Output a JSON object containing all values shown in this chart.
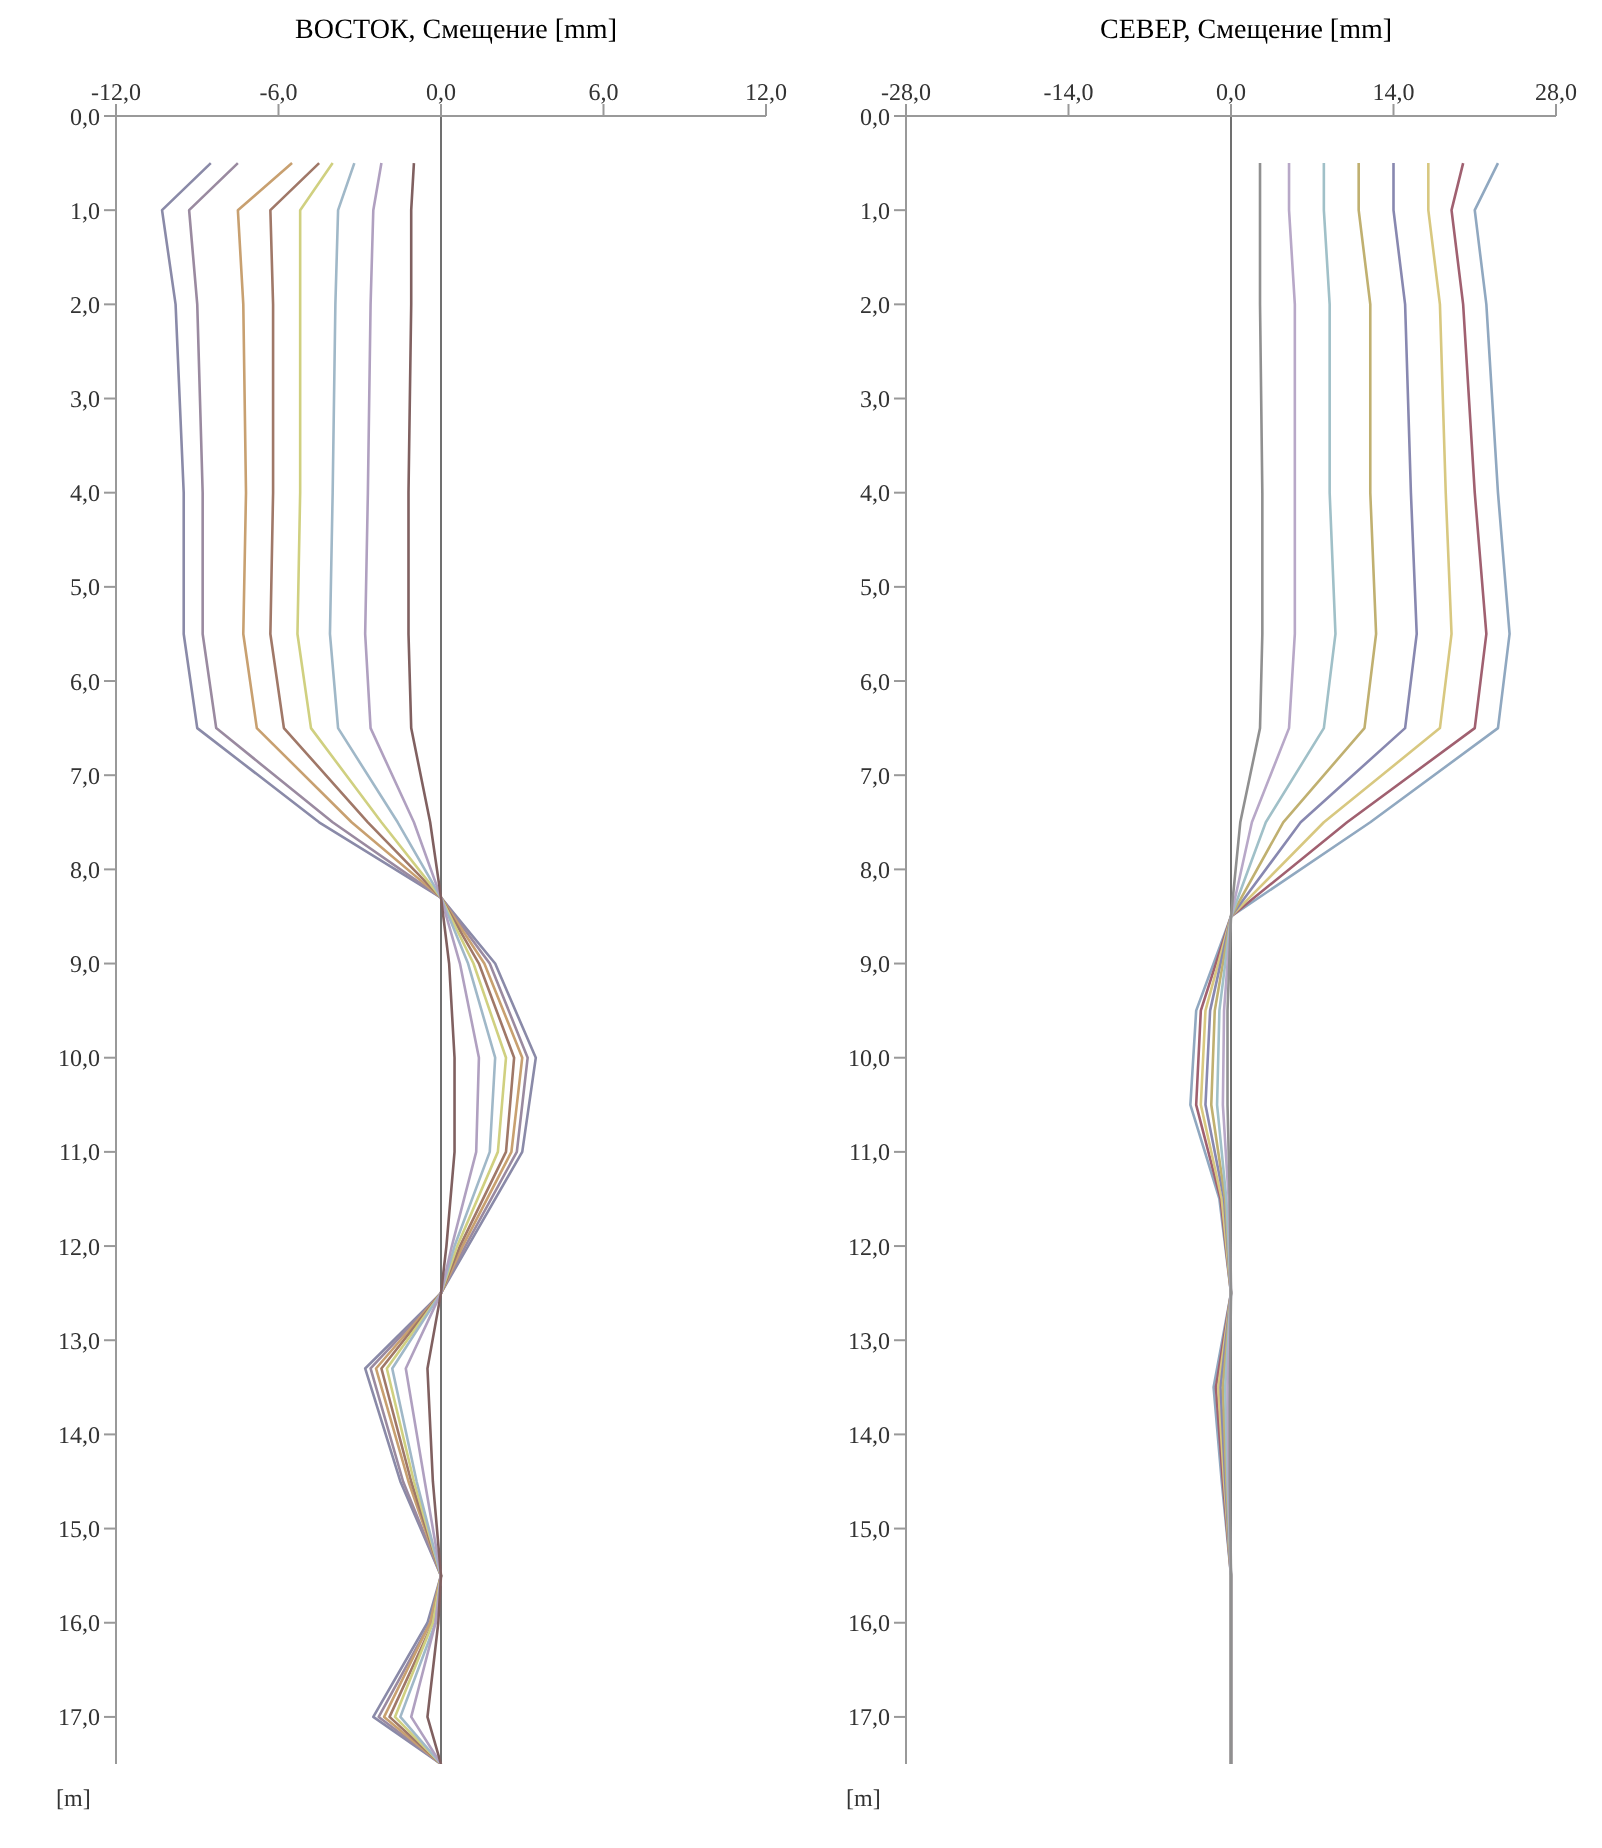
{
  "chart_data": [
    {
      "type": "line",
      "title": "ВОСТОК, Смещение [mm]",
      "ylabel": "[m]",
      "xlim": [
        -12,
        12
      ],
      "xticks": [
        {
          "value": -12,
          "label": "-12,0"
        },
        {
          "value": -6,
          "label": "-6,0"
        },
        {
          "value": 0,
          "label": "0,0"
        },
        {
          "value": 6,
          "label": "6,0"
        },
        {
          "value": 12,
          "label": "12,0"
        }
      ],
      "ylim": [
        17.5,
        0
      ],
      "yticks": [
        {
          "value": 0,
          "label": "0,0"
        },
        {
          "value": 1,
          "label": "1,0"
        },
        {
          "value": 2,
          "label": "2,0"
        },
        {
          "value": 3,
          "label": "3,0"
        },
        {
          "value": 4,
          "label": "4,0"
        },
        {
          "value": 5,
          "label": "5,0"
        },
        {
          "value": 6,
          "label": "6,0"
        },
        {
          "value": 7,
          "label": "7,0"
        },
        {
          "value": 8,
          "label": "8,0"
        },
        {
          "value": 9,
          "label": "9,0"
        },
        {
          "value": 10,
          "label": "10,0"
        },
        {
          "value": 11,
          "label": "11,0"
        },
        {
          "value": 12,
          "label": "12,0"
        },
        {
          "value": 13,
          "label": "13,0"
        },
        {
          "value": 14,
          "label": "14,0"
        },
        {
          "value": 15,
          "label": "15,0"
        },
        {
          "value": 16,
          "label": "16,0"
        },
        {
          "value": 17,
          "label": "17,0"
        }
      ],
      "ref_lines": [
        {
          "axis": "x",
          "value": 0,
          "color": "#707070"
        }
      ],
      "series": [
        {
          "color": "#8a8aa8",
          "x": [
            -8.5,
            -10.3,
            -9.8,
            -9.5,
            -9.5,
            -9,
            -4.5,
            0,
            2,
            3.5,
            3,
            1,
            0,
            -2.8,
            -1.5,
            0,
            -0.5,
            -2.5,
            0
          ],
          "values": [
            0.5,
            1,
            2,
            4,
            5.5,
            6.5,
            7.5,
            8.3,
            9,
            10,
            11,
            12,
            12.5,
            13.3,
            14.5,
            15.5,
            16,
            17,
            17.5
          ]
        },
        {
          "color": "#9a8aa0",
          "x": [
            -7.5,
            -9.3,
            -9,
            -8.8,
            -8.8,
            -8.3,
            -4,
            0,
            1.8,
            3.2,
            2.8,
            0.9,
            0,
            -2.6,
            -1.4,
            0,
            -0.4,
            -2.3,
            0
          ],
          "values": [
            0.5,
            1,
            2,
            4,
            5.5,
            6.5,
            7.5,
            8.3,
            9,
            10,
            11,
            12,
            12.5,
            13.3,
            14.5,
            15.5,
            16,
            17,
            17.5
          ]
        },
        {
          "color": "#c8a070",
          "x": [
            -5.5,
            -7.5,
            -7.3,
            -7.2,
            -7.3,
            -6.8,
            -3.3,
            0,
            1.6,
            3,
            2.6,
            0.8,
            0,
            -2.4,
            -1.2,
            0,
            -0.4,
            -2.1,
            0
          ],
          "values": [
            0.5,
            1,
            2,
            4,
            5.5,
            6.5,
            7.5,
            8.3,
            9,
            10,
            11,
            12,
            12.5,
            13.3,
            14.5,
            15.5,
            16,
            17,
            17.5
          ]
        },
        {
          "color": "#a07868",
          "x": [
            -4.5,
            -6.3,
            -6.2,
            -6.2,
            -6.3,
            -5.8,
            -2.7,
            0,
            1.4,
            2.7,
            2.4,
            0.7,
            0,
            -2.2,
            -1.1,
            0,
            -0.3,
            -1.9,
            0
          ],
          "values": [
            0.5,
            1,
            2,
            4,
            5.5,
            6.5,
            7.5,
            8.3,
            9,
            10,
            11,
            12,
            12.5,
            13.3,
            14.5,
            15.5,
            16,
            17,
            17.5
          ]
        },
        {
          "color": "#d0d080",
          "x": [
            -4,
            -5.2,
            -5.2,
            -5.2,
            -5.3,
            -4.8,
            -2.2,
            0,
            1.2,
            2.4,
            2.1,
            0.6,
            0,
            -2,
            -1,
            0,
            -0.3,
            -1.7,
            0
          ],
          "values": [
            0.5,
            1,
            2,
            4,
            5.5,
            6.5,
            7.5,
            8.3,
            9,
            10,
            11,
            12,
            12.5,
            13.3,
            14.5,
            15.5,
            16,
            17,
            17.5
          ]
        },
        {
          "color": "#a0b8c8",
          "x": [
            -3.2,
            -3.8,
            -3.9,
            -4,
            -4.1,
            -3.8,
            -1.6,
            0,
            1,
            2,
            1.8,
            0.5,
            0,
            -1.8,
            -0.9,
            0,
            -0.2,
            -1.5,
            0
          ],
          "values": [
            0.5,
            1,
            2,
            4,
            5.5,
            6.5,
            7.5,
            8.3,
            9,
            10,
            11,
            12,
            12.5,
            13.3,
            14.5,
            15.5,
            16,
            17,
            17.5
          ]
        },
        {
          "color": "#b0a0c0",
          "x": [
            -2.2,
            -2.5,
            -2.6,
            -2.7,
            -2.8,
            -2.6,
            -1,
            0,
            0.7,
            1.4,
            1.3,
            0.4,
            0,
            -1.3,
            -0.6,
            0,
            -0.2,
            -1.1,
            0
          ],
          "values": [
            0.5,
            1,
            2,
            4,
            5.5,
            6.5,
            7.5,
            8.3,
            9,
            10,
            11,
            12,
            12.5,
            13.3,
            14.5,
            15.5,
            16,
            17,
            17.5
          ]
        },
        {
          "color": "#806060",
          "x": [
            -1,
            -1.1,
            -1.1,
            -1.2,
            -1.2,
            -1.1,
            -0.4,
            0,
            0.3,
            0.5,
            0.5,
            0.2,
            0,
            -0.5,
            -0.3,
            0,
            -0.1,
            -0.5,
            0
          ],
          "values": [
            0.5,
            1,
            2,
            4,
            5.5,
            6.5,
            7.5,
            8.3,
            9,
            10,
            11,
            12,
            12.5,
            13.3,
            14.5,
            15.5,
            16,
            17,
            17.5
          ]
        }
      ]
    },
    {
      "type": "line",
      "title": "СЕВЕР, Смещение [mm]",
      "ylabel": "[m]",
      "xlim": [
        -28,
        28
      ],
      "xticks": [
        {
          "value": -28,
          "label": "-28,0"
        },
        {
          "value": -14,
          "label": "-14,0"
        },
        {
          "value": 0,
          "label": "0,0"
        },
        {
          "value": 14,
          "label": "14,0"
        },
        {
          "value": 28,
          "label": "28,0"
        }
      ],
      "ylim": [
        17.5,
        0
      ],
      "yticks": [
        {
          "value": 0,
          "label": "0,0"
        },
        {
          "value": 1,
          "label": "1,0"
        },
        {
          "value": 2,
          "label": "2,0"
        },
        {
          "value": 3,
          "label": "3,0"
        },
        {
          "value": 4,
          "label": "4,0"
        },
        {
          "value": 5,
          "label": "5,0"
        },
        {
          "value": 6,
          "label": "6,0"
        },
        {
          "value": 7,
          "label": "7,0"
        },
        {
          "value": 8,
          "label": "8,0"
        },
        {
          "value": 9,
          "label": "9,0"
        },
        {
          "value": 10,
          "label": "10,0"
        },
        {
          "value": 11,
          "label": "11,0"
        },
        {
          "value": 12,
          "label": "12,0"
        },
        {
          "value": 13,
          "label": "13,0"
        },
        {
          "value": 14,
          "label": "14,0"
        },
        {
          "value": 15,
          "label": "15,0"
        },
        {
          "value": 16,
          "label": "16,0"
        },
        {
          "value": 17,
          "label": "17,0"
        }
      ],
      "ref_lines": [
        {
          "axis": "x",
          "value": 0,
          "color": "#707070"
        }
      ],
      "series": [
        {
          "color": "#90a8c0",
          "x": [
            23,
            21,
            22,
            23,
            24,
            23,
            12,
            0,
            -3,
            -3.5,
            -1,
            0,
            -1.5,
            -0.8,
            0,
            0
          ],
          "values": [
            0.5,
            1,
            2,
            4,
            5.5,
            6.5,
            7.5,
            8.5,
            9.5,
            10.5,
            11.5,
            12.5,
            13.5,
            14.5,
            15.5,
            17.5
          ]
        },
        {
          "color": "#a06070",
          "x": [
            20,
            19,
            20,
            21,
            22,
            21,
            10,
            0,
            -2.6,
            -3,
            -0.9,
            0,
            -1.3,
            -0.7,
            0,
            0
          ],
          "values": [
            0.5,
            1,
            2,
            4,
            5.5,
            6.5,
            7.5,
            8.5,
            9.5,
            10.5,
            11.5,
            12.5,
            13.5,
            14.5,
            15.5,
            17.5
          ]
        },
        {
          "color": "#d8c880",
          "x": [
            17,
            17,
            18,
            18.5,
            19,
            18,
            8,
            0,
            -2.2,
            -2.6,
            -0.8,
            0,
            -1.1,
            -0.6,
            0,
            0
          ],
          "values": [
            0.5,
            1,
            2,
            4,
            5.5,
            6.5,
            7.5,
            8.5,
            9.5,
            10.5,
            11.5,
            12.5,
            13.5,
            14.5,
            15.5,
            17.5
          ]
        },
        {
          "color": "#8888b0",
          "x": [
            14,
            14,
            15,
            15.5,
            16,
            15,
            6,
            0,
            -1.8,
            -2.2,
            -0.6,
            0,
            -0.9,
            -0.5,
            0,
            0
          ],
          "values": [
            0.5,
            1,
            2,
            4,
            5.5,
            6.5,
            7.5,
            8.5,
            9.5,
            10.5,
            11.5,
            12.5,
            13.5,
            14.5,
            15.5,
            17.5
          ]
        },
        {
          "color": "#c0b070",
          "x": [
            11,
            11,
            12,
            12,
            12.5,
            11.5,
            4.5,
            0,
            -1.4,
            -1.7,
            -0.5,
            0,
            -0.7,
            -0.4,
            0,
            0
          ],
          "values": [
            0.5,
            1,
            2,
            4,
            5.5,
            6.5,
            7.5,
            8.5,
            9.5,
            10.5,
            11.5,
            12.5,
            13.5,
            14.5,
            15.5,
            17.5
          ]
        },
        {
          "color": "#a0c0c8",
          "x": [
            8,
            8,
            8.5,
            8.5,
            9,
            8,
            3,
            0,
            -1,
            -1.2,
            -0.4,
            0,
            -0.5,
            -0.3,
            0,
            0
          ],
          "values": [
            0.5,
            1,
            2,
            4,
            5.5,
            6.5,
            7.5,
            8.5,
            9.5,
            10.5,
            11.5,
            12.5,
            13.5,
            14.5,
            15.5,
            17.5
          ]
        },
        {
          "color": "#b8a8c8",
          "x": [
            5,
            5,
            5.5,
            5.5,
            5.5,
            5,
            1.8,
            0,
            -0.6,
            -0.7,
            -0.2,
            0,
            -0.3,
            -0.2,
            0,
            0
          ],
          "values": [
            0.5,
            1,
            2,
            4,
            5.5,
            6.5,
            7.5,
            8.5,
            9.5,
            10.5,
            11.5,
            12.5,
            13.5,
            14.5,
            15.5,
            17.5
          ]
        },
        {
          "color": "#909090",
          "x": [
            2.5,
            2.5,
            2.5,
            2.7,
            2.7,
            2.5,
            0.8,
            0,
            -0.3,
            -0.3,
            -0.1,
            0,
            -0.1,
            -0.1,
            0,
            0
          ],
          "values": [
            0.5,
            1,
            2,
            4,
            5.5,
            6.5,
            7.5,
            8.5,
            9.5,
            10.5,
            11.5,
            12.5,
            13.5,
            14.5,
            15.5,
            17.5
          ]
        }
      ]
    }
  ]
}
